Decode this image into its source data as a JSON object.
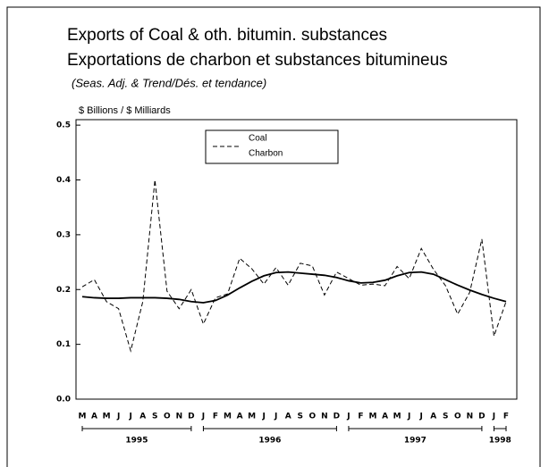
{
  "chart_data": {
    "type": "line",
    "title": "Exports of Coal & oth. bitumin. substances",
    "title_fr": "Exportations de charbon et substances bitumineus",
    "subtitle": "(Seas. Adj. & Trend/Dés. et tendance)",
    "y_label": "$ Billions / $ Milliards",
    "categories": [
      "M",
      "A",
      "M",
      "J",
      "J",
      "A",
      "S",
      "O",
      "N",
      "D",
      "J",
      "F",
      "M",
      "A",
      "M",
      "J",
      "J",
      "A",
      "S",
      "O",
      "N",
      "D",
      "J",
      "F",
      "M",
      "A",
      "M",
      "J",
      "J",
      "A",
      "S",
      "O",
      "N",
      "D",
      "J",
      "F"
    ],
    "years": [
      {
        "label": "1995",
        "first": 0,
        "last": 9
      },
      {
        "label": "1996",
        "first": 10,
        "last": 21
      },
      {
        "label": "1997",
        "first": 22,
        "last": 33
      },
      {
        "label": "1998",
        "first": 34,
        "last": 35
      }
    ],
    "series": [
      {
        "name": "Coal",
        "name_fr": "Charbon",
        "color": "#000000",
        "dash": true,
        "values": [
          0.205,
          0.218,
          0.178,
          0.165,
          0.088,
          0.178,
          0.4,
          0.197,
          0.165,
          0.2,
          0.137,
          0.185,
          0.192,
          0.257,
          0.238,
          0.21,
          0.24,
          0.208,
          0.248,
          0.243,
          0.19,
          0.232,
          0.22,
          0.208,
          0.21,
          0.207,
          0.242,
          0.22,
          0.275,
          0.237,
          0.207,
          0.155,
          0.195,
          0.292,
          0.115,
          0.178
        ]
      },
      {
        "color": "#000000",
        "dash": false,
        "values": [
          0.187,
          0.185,
          0.184,
          0.184,
          0.185,
          0.185,
          0.185,
          0.184,
          0.182,
          0.178,
          0.176,
          0.18,
          0.19,
          0.203,
          0.215,
          0.225,
          0.231,
          0.232,
          0.23,
          0.228,
          0.226,
          0.222,
          0.216,
          0.212,
          0.213,
          0.217,
          0.225,
          0.231,
          0.232,
          0.228,
          0.218,
          0.208,
          0.199,
          0.191,
          0.184,
          0.178
        ]
      }
    ],
    "ylim": [
      0,
      0.51
    ],
    "yticks": [
      {
        "value": 0,
        "label": "0.0"
      },
      0.1,
      0.2,
      0.3,
      0.4,
      0.5
    ]
  }
}
